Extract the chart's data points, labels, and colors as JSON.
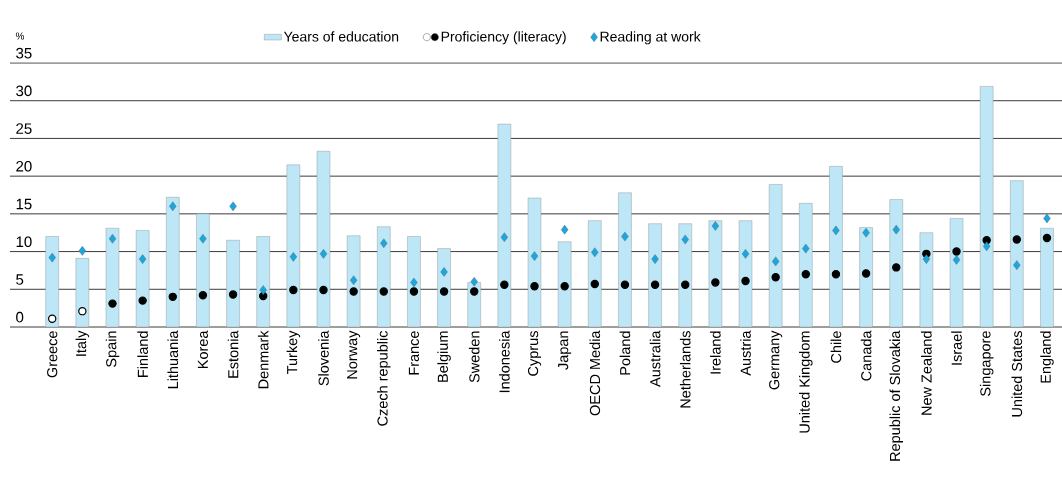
{
  "chart_data": {
    "type": "bar",
    "ylabel": "%",
    "categories": [
      "Greece",
      "Italy",
      "Spain",
      "Finland",
      "Lithuania",
      "Korea",
      "Estonia",
      "Denmark",
      "Turkey",
      "Slovenia",
      "Norway",
      "Czech republic",
      "France",
      "Belgium",
      "Sweden",
      "Indonesia",
      "Cyprus",
      "Japan",
      "OECD Media",
      "Poland",
      "Australia",
      "Netherlands",
      "Ireland",
      "Austria",
      "Germany",
      "United Kingdom",
      "Chile",
      "Canada",
      "Republic of Slovakia",
      "New Zealand",
      "Israel",
      "Singapore",
      "United States",
      "England"
    ],
    "series": [
      {
        "name": "Years of education",
        "color": "#bde6f6",
        "values": [
          12.0,
          9.1,
          13.1,
          12.8,
          17.2,
          15.0,
          11.5,
          12.0,
          21.5,
          23.3,
          12.1,
          13.3,
          12.0,
          10.4,
          5.9,
          26.9,
          17.1,
          11.3,
          14.1,
          17.8,
          13.7,
          13.7,
          14.1,
          14.1,
          18.9,
          16.4,
          21.3,
          13.2,
          16.9,
          12.5,
          14.4,
          31.9,
          19.4,
          13.1
        ]
      },
      {
        "name": "Proficiency (literacy)",
        "type": "scatter",
        "marker": "circle",
        "color": "#000000",
        "colors": [
          "#ffffff",
          "#ffffff",
          "#000000",
          "#000000",
          "#000000",
          "#000000",
          "#000000",
          "#000000",
          "#000000",
          "#000000",
          "#000000",
          "#000000",
          "#000000",
          "#000000",
          "#000000",
          "#000000",
          "#000000",
          "#000000",
          "#000000",
          "#000000",
          "#000000",
          "#000000",
          "#000000",
          "#000000",
          "#000000",
          "#000000",
          "#000000",
          "#000000",
          "#000000",
          "#000000",
          "#000000",
          "#000000",
          "#000000",
          "#000000"
        ],
        "values": [
          1.1,
          2.1,
          3.1,
          3.5,
          4.0,
          4.2,
          4.3,
          4.1,
          4.9,
          4.9,
          4.7,
          4.7,
          4.7,
          4.7,
          4.7,
          5.6,
          5.4,
          5.4,
          5.7,
          5.6,
          5.6,
          5.6,
          5.9,
          6.1,
          6.6,
          7.0,
          7.0,
          7.1,
          7.9,
          9.7,
          10.0,
          11.5,
          11.6,
          11.8
        ]
      },
      {
        "name": "Reading at work",
        "type": "scatter",
        "marker": "diamond",
        "color": "#1ba6de",
        "values": [
          9.2,
          10.1,
          11.7,
          9.0,
          16.0,
          11.7,
          16.0,
          4.9,
          9.3,
          9.7,
          6.2,
          11.1,
          5.9,
          7.3,
          6.0,
          11.9,
          9.4,
          12.9,
          9.9,
          12.0,
          9.0,
          11.6,
          13.4,
          9.7,
          8.7,
          10.4,
          12.8,
          12.5,
          12.9,
          9.0,
          8.9,
          10.7,
          8.2,
          14.4
        ]
      }
    ],
    "ylim": [
      0,
      35
    ],
    "yticks": [
      0,
      5,
      10,
      15,
      20,
      25,
      30,
      35
    ],
    "grid": "y",
    "legend": "top"
  }
}
